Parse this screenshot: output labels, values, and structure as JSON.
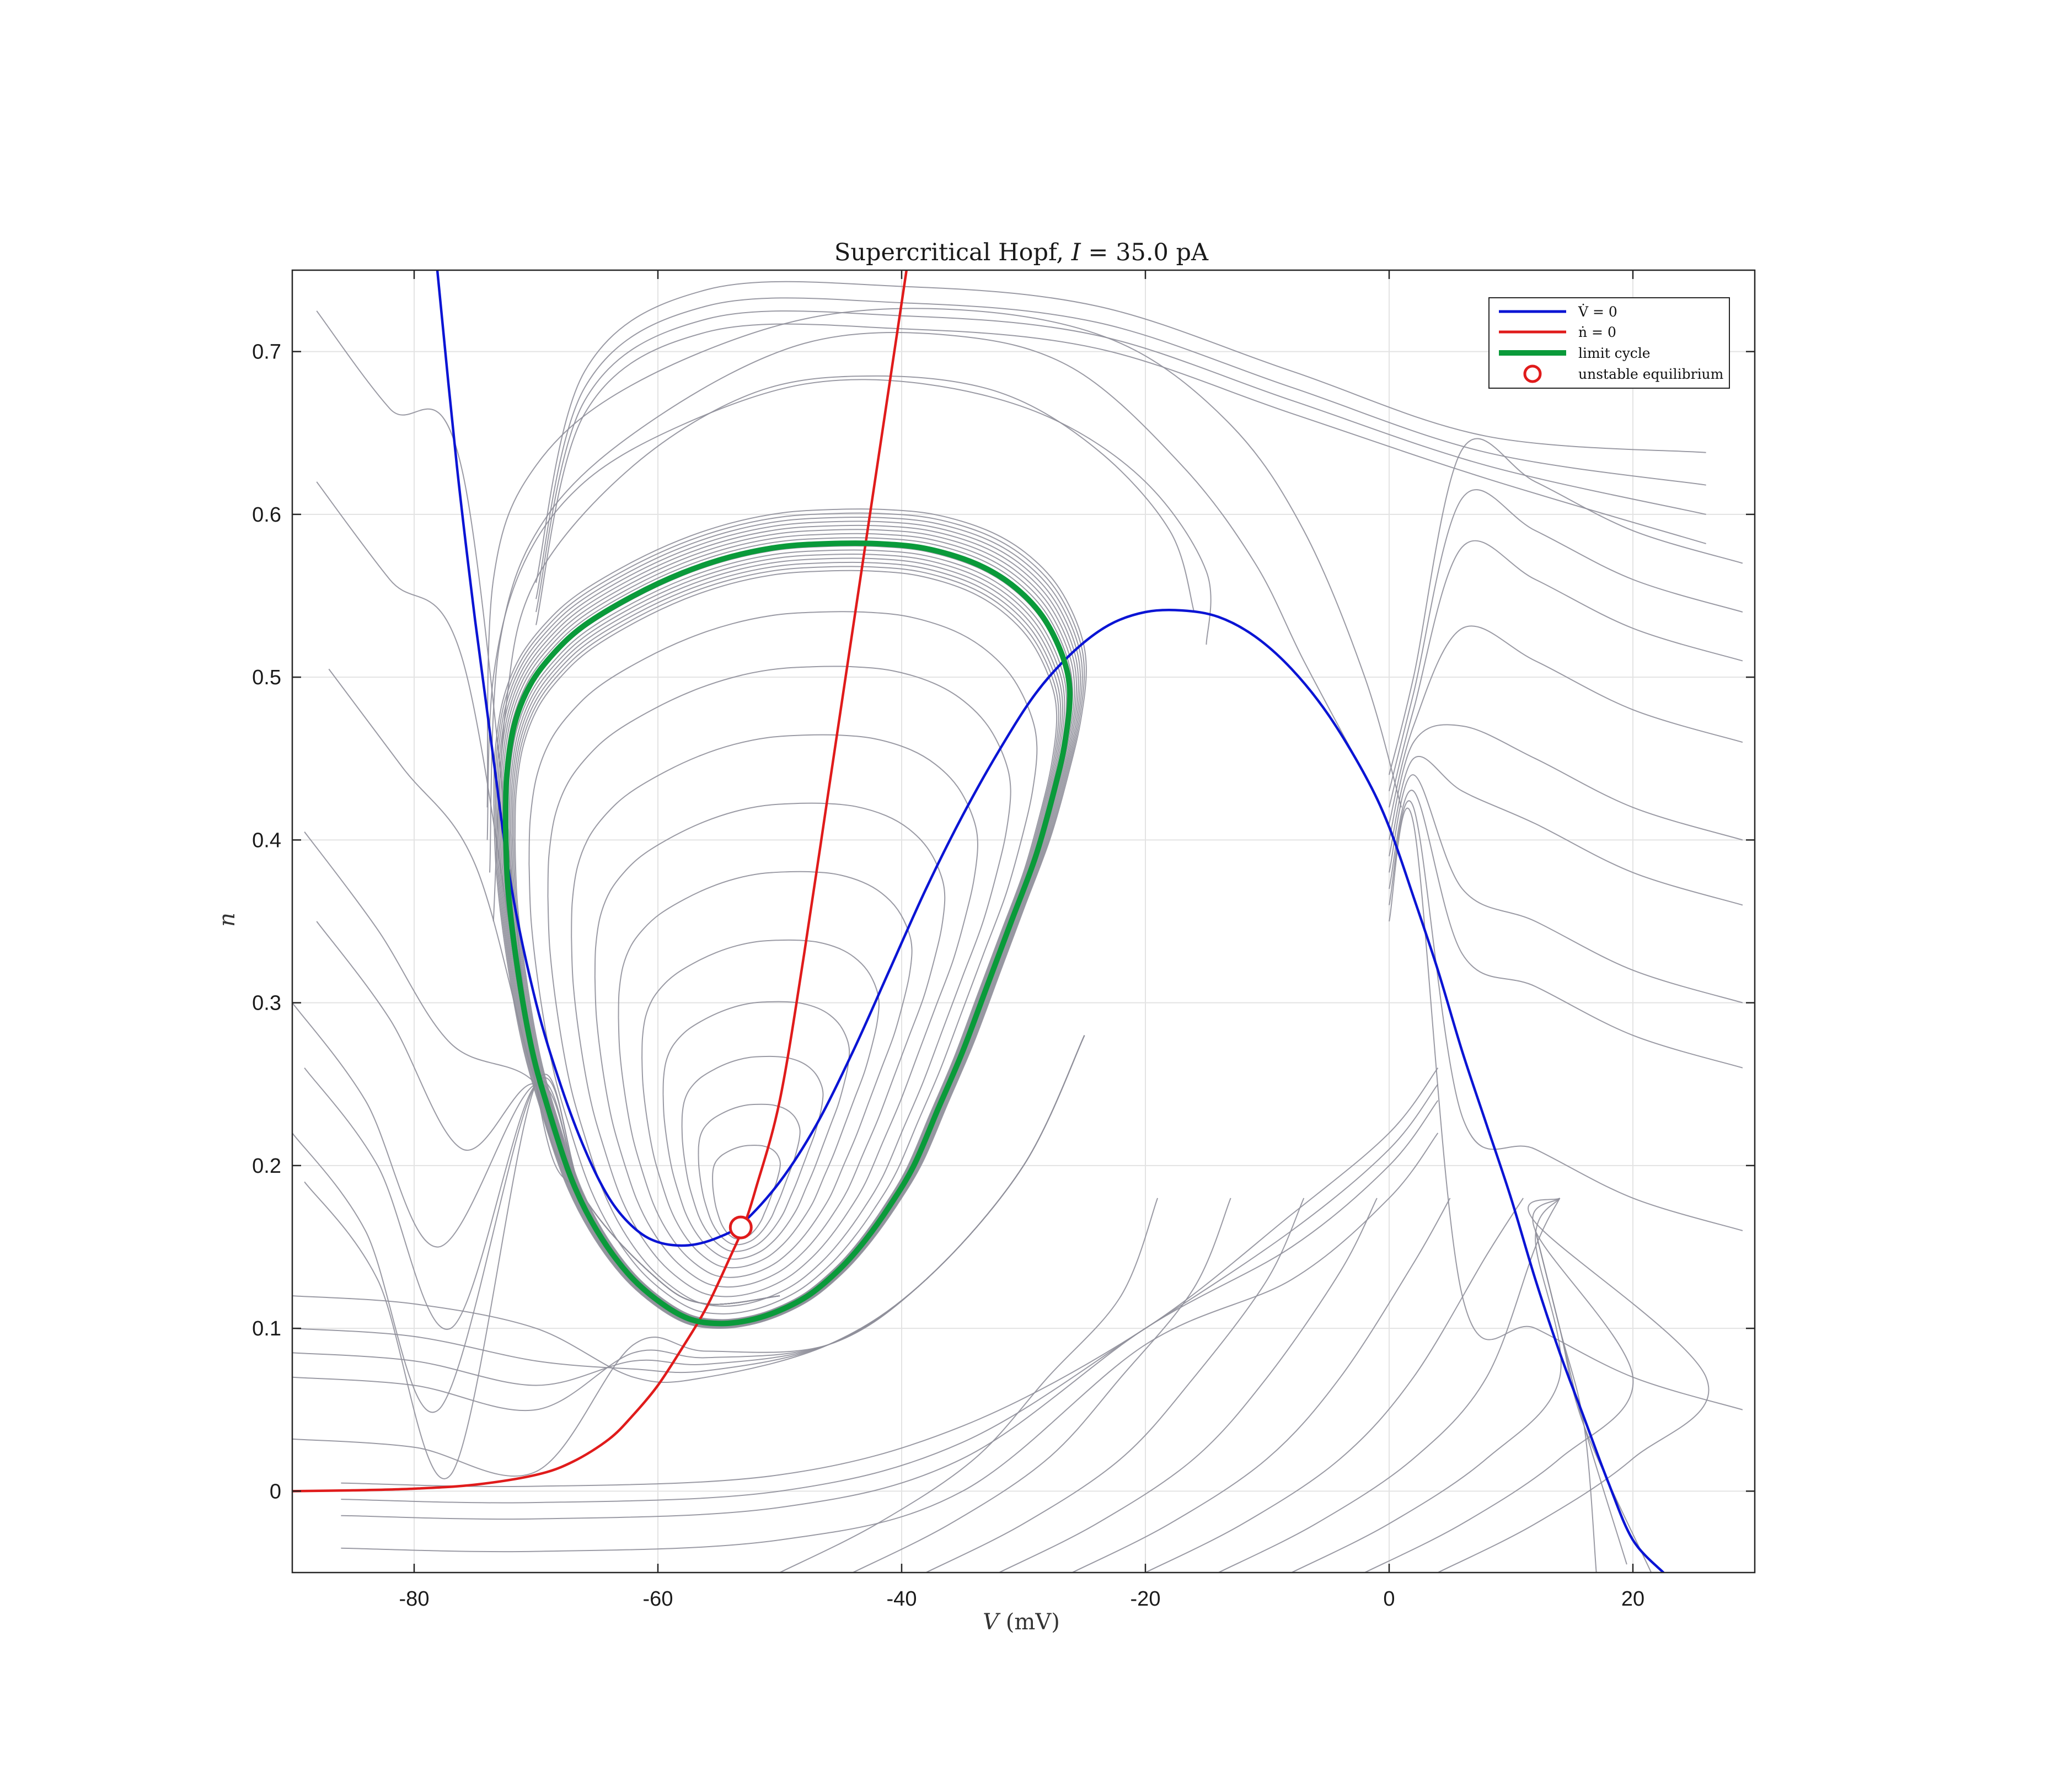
{
  "chart_data": {
    "type": "line",
    "title": "Supercritical Hopf, I = 35.0 pA",
    "title_parts": [
      "Supercritical Hopf, ",
      "I",
      " = 35.0 pA"
    ],
    "xlabel": "V (mV)",
    "xlabel_parts": [
      "V",
      " (mV)"
    ],
    "ylabel": "n",
    "xlim": [
      -90,
      30
    ],
    "ylim": [
      -0.05,
      0.75
    ],
    "xticks": [
      -80,
      -60,
      -40,
      -20,
      0,
      20
    ],
    "xtick_labels": [
      "-80",
      "-60",
      "-40",
      "-20",
      "0",
      "20"
    ],
    "yticks": [
      0,
      0.1,
      0.2,
      0.3,
      0.4,
      0.5,
      0.6,
      0.7
    ],
    "ytick_labels": [
      "0",
      "0.1",
      "0.2",
      "0.3",
      "0.4",
      "0.5",
      "0.6",
      "0.7"
    ],
    "grid": true,
    "legend_position": "top-right",
    "legend": [
      {
        "label": "V̇ = 0",
        "color": "#0a14d4",
        "kind": "line"
      },
      {
        "label": "ṅ = 0",
        "color": "#e01b1b",
        "kind": "line"
      },
      {
        "label": "limit cycle",
        "color": "#0a9a3a",
        "kind": "thick-line"
      },
      {
        "label": "unstable equilibrium",
        "color": "#e01b1b",
        "kind": "circle"
      }
    ],
    "series": [
      {
        "name": "V̇ = 0",
        "color": "#0a14d4",
        "points": [
          [
            -78.1,
            0.75
          ],
          [
            -76.5,
            0.63
          ],
          [
            -75,
            0.535
          ],
          [
            -73.5,
            0.45
          ],
          [
            -72,
            0.37
          ],
          [
            -70,
            0.3
          ],
          [
            -68,
            0.25
          ],
          [
            -66,
            0.21
          ],
          [
            -64,
            0.18
          ],
          [
            -62,
            0.162
          ],
          [
            -60,
            0.153
          ],
          [
            -57.5,
            0.151
          ],
          [
            -55,
            0.156
          ],
          [
            -53,
            0.165
          ],
          [
            -50,
            0.19
          ],
          [
            -47,
            0.225
          ],
          [
            -44,
            0.27
          ],
          [
            -41,
            0.32
          ],
          [
            -38,
            0.37
          ],
          [
            -35,
            0.415
          ],
          [
            -32,
            0.455
          ],
          [
            -29,
            0.49
          ],
          [
            -26,
            0.515
          ],
          [
            -23,
            0.532
          ],
          [
            -20,
            0.54
          ],
          [
            -17,
            0.541
          ],
          [
            -14,
            0.537
          ],
          [
            -11,
            0.525
          ],
          [
            -8,
            0.505
          ],
          [
            -5,
            0.477
          ],
          [
            -2,
            0.44
          ],
          [
            0,
            0.408
          ],
          [
            2,
            0.365
          ],
          [
            4,
            0.32
          ],
          [
            6,
            0.27
          ],
          [
            8,
            0.225
          ],
          [
            10,
            0.18
          ],
          [
            12,
            0.13
          ],
          [
            14,
            0.085
          ],
          [
            16,
            0.045
          ],
          [
            18,
            0.005
          ],
          [
            20,
            -0.03
          ],
          [
            22.5,
            -0.05
          ]
        ]
      },
      {
        "name": "ṅ = 0",
        "color": "#e01b1b",
        "points": [
          [
            -90,
            0.0
          ],
          [
            -85,
            0.0005
          ],
          [
            -80,
            0.0015
          ],
          [
            -75,
            0.004
          ],
          [
            -70,
            0.01
          ],
          [
            -67,
            0.018
          ],
          [
            -64,
            0.032
          ],
          [
            -62,
            0.047
          ],
          [
            -60,
            0.065
          ],
          [
            -58,
            0.088
          ],
          [
            -56,
            0.113
          ],
          [
            -54,
            0.145
          ],
          [
            -53,
            0.162
          ],
          [
            -52,
            0.185
          ],
          [
            -50,
            0.24
          ],
          [
            -48,
            0.33
          ],
          [
            -46,
            0.43
          ],
          [
            -44,
            0.53
          ],
          [
            -42,
            0.63
          ],
          [
            -40,
            0.73
          ],
          [
            -39.6,
            0.75
          ]
        ]
      },
      {
        "name": "limit cycle",
        "color": "#0a9a3a",
        "points": [
          [
            -72.5,
            0.41
          ],
          [
            -72.4,
            0.44
          ],
          [
            -71.8,
            0.47
          ],
          [
            -70.5,
            0.495
          ],
          [
            -68.5,
            0.515
          ],
          [
            -66,
            0.532
          ],
          [
            -62,
            0.55
          ],
          [
            -58,
            0.564
          ],
          [
            -54,
            0.574
          ],
          [
            -50,
            0.58
          ],
          [
            -46,
            0.582
          ],
          [
            -42,
            0.582
          ],
          [
            -38,
            0.579
          ],
          [
            -34,
            0.57
          ],
          [
            -31,
            0.557
          ],
          [
            -28.5,
            0.538
          ],
          [
            -26.8,
            0.513
          ],
          [
            -26.2,
            0.49
          ],
          [
            -26.6,
            0.46
          ],
          [
            -27.5,
            0.43
          ],
          [
            -29,
            0.39
          ],
          [
            -31,
            0.35
          ],
          [
            -33,
            0.31
          ],
          [
            -35,
            0.27
          ],
          [
            -37,
            0.235
          ],
          [
            -39,
            0.2
          ],
          [
            -41,
            0.175
          ],
          [
            -43,
            0.154
          ],
          [
            -45,
            0.137
          ],
          [
            -47.5,
            0.121
          ],
          [
            -50,
            0.111
          ],
          [
            -52.5,
            0.105
          ],
          [
            -55,
            0.103
          ],
          [
            -57.5,
            0.106
          ],
          [
            -60,
            0.117
          ],
          [
            -62.5,
            0.134
          ],
          [
            -65,
            0.16
          ],
          [
            -67,
            0.19
          ],
          [
            -68.8,
            0.23
          ],
          [
            -70.3,
            0.27
          ],
          [
            -71.5,
            0.32
          ],
          [
            -72.3,
            0.37
          ],
          [
            -72.5,
            0.41
          ]
        ]
      },
      {
        "name": "unstable equilibrium",
        "color": "#e01b1b",
        "points": [
          [
            -53.2,
            0.162
          ]
        ]
      }
    ]
  }
}
